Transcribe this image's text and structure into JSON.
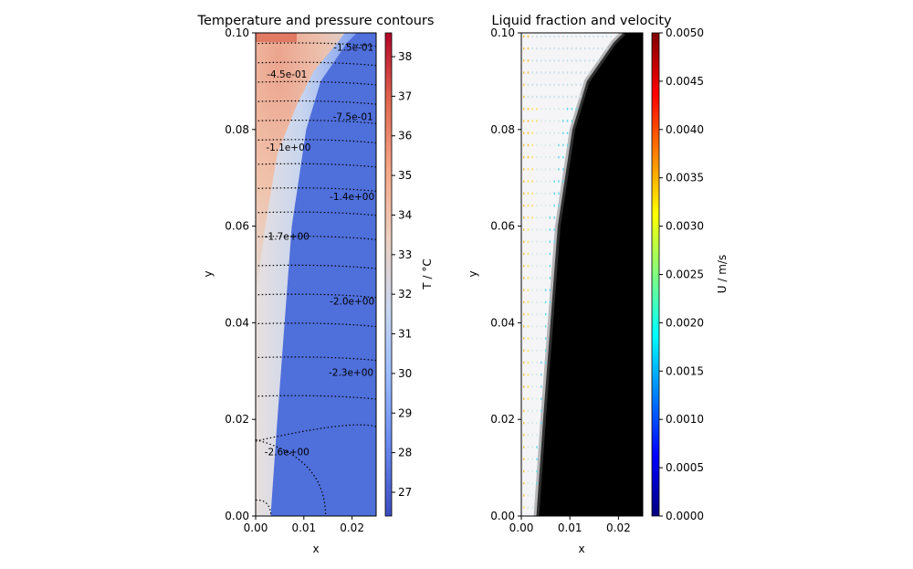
{
  "chart_data": [
    {
      "type": "heatmap",
      "title": "Temperature and pressure contours",
      "xlabel": "x",
      "ylabel": "y",
      "xlim": [
        0,
        0.025
      ],
      "ylim": [
        0,
        0.1
      ],
      "xticks": [
        "0.00",
        "0.01",
        "0.02"
      ],
      "yticks": [
        "0.00",
        "0.02",
        "0.04",
        "0.06",
        "0.08",
        "0.10"
      ],
      "colorbar": {
        "label": "T / °C",
        "range": [
          26.4,
          38.6
        ],
        "ticks": [
          "27",
          "28",
          "29",
          "30",
          "31",
          "32",
          "33",
          "34",
          "35",
          "36",
          "37",
          "38"
        ],
        "colors": [
          "#3b4cc0",
          "#6788ee",
          "#9abbff",
          "#c9d7f0",
          "#edd1c2",
          "#f7a889",
          "#e26952",
          "#b40426"
        ]
      },
      "melt_front": [
        [
          0.0031,
          0.0
        ],
        [
          0.0045,
          0.02
        ],
        [
          0.006,
          0.04
        ],
        [
          0.0075,
          0.06
        ],
        [
          0.0105,
          0.08
        ],
        [
          0.0135,
          0.09
        ],
        [
          0.019,
          0.098
        ],
        [
          0.021,
          0.1
        ]
      ],
      "pressure_contours": {
        "style": "dotted",
        "labels": [
          {
            "text": "-1.5e-01",
            "x": 0.0203,
            "y": 0.0971
          },
          {
            "text": "-4.5e-01",
            "x": 0.0065,
            "y": 0.0915
          },
          {
            "text": "-7.5e-01",
            "x": 0.0202,
            "y": 0.0827
          },
          {
            "text": "-1.1e+00",
            "x": 0.0068,
            "y": 0.0764
          },
          {
            "text": "-1.4e+00",
            "x": 0.02,
            "y": 0.0662
          },
          {
            "text": "-1.7e+00",
            "x": 0.0065,
            "y": 0.0579
          },
          {
            "text": "-2.0e+00",
            "x": 0.02,
            "y": 0.0445
          },
          {
            "text": "-2.3e+00",
            "x": 0.0198,
            "y": 0.0298
          },
          {
            "text": "-2.6e+00",
            "x": 0.0065,
            "y": 0.0133
          }
        ]
      }
    },
    {
      "type": "heatmap",
      "title": "Liquid fraction and velocity",
      "xlabel": "x",
      "ylabel": "y",
      "xlim": [
        0,
        0.025
      ],
      "ylim": [
        0,
        0.1
      ],
      "xticks": [
        "0.00",
        "0.01",
        "0.02"
      ],
      "yticks": [
        "0.00",
        "0.02",
        "0.04",
        "0.06",
        "0.08",
        "0.10"
      ],
      "colorbar": {
        "label": "U / m/s",
        "range": [
          0,
          0.005
        ],
        "ticks": [
          "0.0000",
          "0.0005",
          "0.0010",
          "0.0015",
          "0.0020",
          "0.0025",
          "0.0030",
          "0.0035",
          "0.0040",
          "0.0045",
          "0.0050"
        ],
        "colors": [
          "#000080",
          "#0000ff",
          "#0080ff",
          "#00ffff",
          "#80ff80",
          "#ffff00",
          "#ff8000",
          "#ff0000",
          "#800000"
        ]
      },
      "melt_front": [
        [
          0.0031,
          0.0
        ],
        [
          0.0045,
          0.02
        ],
        [
          0.006,
          0.04
        ],
        [
          0.0075,
          0.06
        ],
        [
          0.0105,
          0.08
        ],
        [
          0.0135,
          0.09
        ],
        [
          0.019,
          0.098
        ],
        [
          0.021,
          0.1
        ]
      ]
    }
  ]
}
